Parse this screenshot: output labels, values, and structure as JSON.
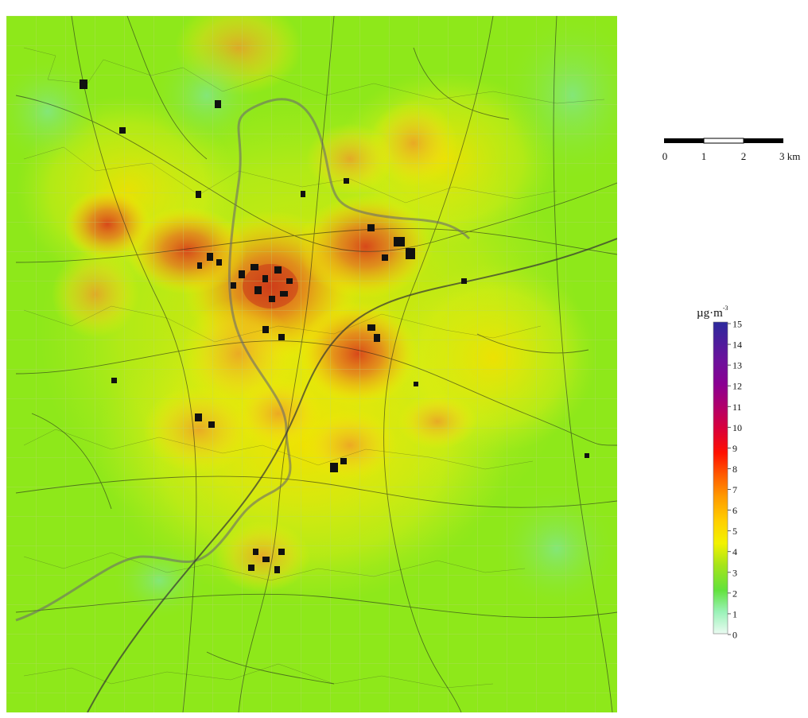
{
  "scale_bar": {
    "labels": [
      "0",
      "1",
      "2",
      "3 km"
    ]
  },
  "legend": {
    "unit": "µg·m",
    "unit_superscript": "-3",
    "ticks": [
      "15",
      "14",
      "13",
      "12",
      "11",
      "10",
      "9",
      "8",
      "7",
      "6",
      "5",
      "4",
      "3",
      "2",
      "1",
      "0"
    ],
    "colors": [
      "#eafbf1",
      "#7df0a8",
      "#63e03a",
      "#9fe21a",
      "#f2f200",
      "#ffd200",
      "#ff9a00",
      "#ff5a00",
      "#ff0000",
      "#d8003a",
      "#b4006a",
      "#8a0090",
      "#6a109a",
      "#4a1aa0",
      "#3a20a2",
      "#2c2a9c"
    ]
  },
  "map": {
    "palette": {
      "background": "#ffffff",
      "low": "#8ee81a",
      "mid": "#f0f000",
      "high": "#f0a020",
      "peak": "#e25a20",
      "linework": "#1a1a1a"
    }
  }
}
